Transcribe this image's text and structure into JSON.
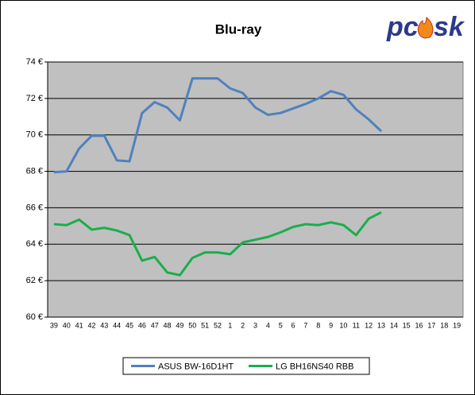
{
  "logo": {
    "left": "pc",
    "right": "sk"
  },
  "chart_data": {
    "type": "line",
    "title": "Blu-ray",
    "categories": [
      "39",
      "40",
      "41",
      "42",
      "43",
      "44",
      "45",
      "46",
      "47",
      "48",
      "49",
      "50",
      "51",
      "52",
      "1",
      "2",
      "3",
      "4",
      "5",
      "6",
      "7",
      "8",
      "9",
      "10",
      "11",
      "12",
      "13",
      "14",
      "15",
      "16",
      "17",
      "18",
      "19"
    ],
    "series": [
      {
        "name": "ASUS BW-16D1HT",
        "color": "#4f81bd",
        "values": [
          67.95,
          68.0,
          69.25,
          69.95,
          69.95,
          68.6,
          68.55,
          71.2,
          71.8,
          71.5,
          70.8,
          73.1,
          73.1,
          73.1,
          72.55,
          72.3,
          71.5,
          71.1,
          71.2,
          71.45,
          71.7,
          72.0,
          72.4,
          72.2,
          71.4,
          70.85,
          70.2,
          null,
          null,
          null,
          null,
          null,
          null
        ]
      },
      {
        "name": "LG BH16NS40 RBB",
        "color": "#1aae4b",
        "values": [
          65.1,
          65.05,
          65.35,
          64.8,
          64.9,
          64.75,
          64.5,
          63.1,
          63.3,
          62.45,
          62.3,
          63.25,
          63.55,
          63.55,
          63.45,
          64.1,
          64.25,
          64.4,
          64.65,
          64.95,
          65.1,
          65.05,
          65.2,
          65.05,
          64.5,
          65.4,
          65.75,
          null,
          null,
          null,
          null,
          null,
          null
        ]
      }
    ],
    "ylim": [
      60,
      74
    ],
    "yticks": [
      {
        "value": 60,
        "label": "60 €"
      },
      {
        "value": 62,
        "label": "62 €"
      },
      {
        "value": 64,
        "label": "64 €"
      },
      {
        "value": 66,
        "label": "66 €"
      },
      {
        "value": 68,
        "label": "68 €"
      },
      {
        "value": 70,
        "label": "70 €"
      },
      {
        "value": 72,
        "label": "72 €"
      },
      {
        "value": 74,
        "label": "74 €"
      }
    ],
    "grid": true,
    "plot_background": "#c0c0c0",
    "legend_position": "bottom"
  }
}
